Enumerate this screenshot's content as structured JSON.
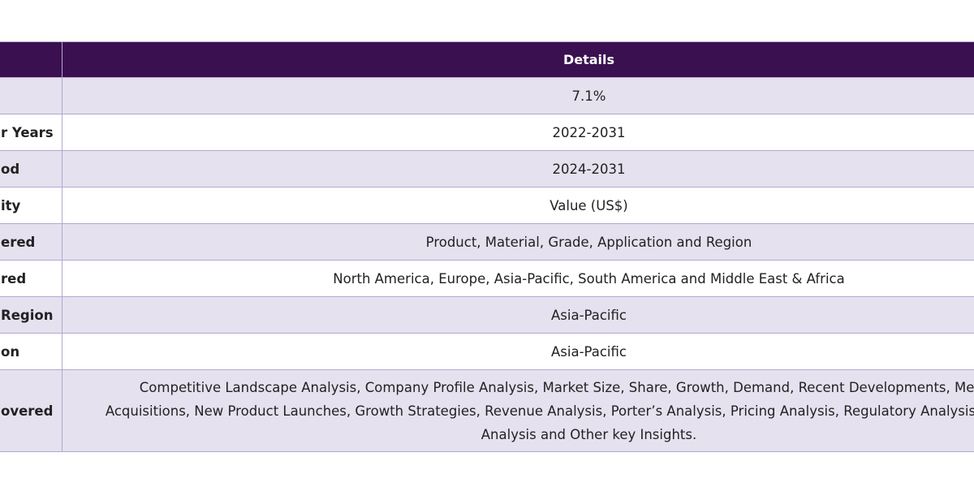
{
  "table": {
    "header": {
      "details": "Details"
    },
    "rows": [
      {
        "value": "7.1%"
      },
      {
        "label": "r Years",
        "value": "2022-2031"
      },
      {
        "label": "od",
        "value": "2024-2031"
      },
      {
        "label": "ity",
        "value": "Value (US$)"
      },
      {
        "label": "ered",
        "value": "Product, Material, Grade, Application and Region"
      },
      {
        "label": "red",
        "value": "North America, Europe, Asia-Pacific, South America and Middle East & Africa"
      },
      {
        "label": "Region",
        "value": "Asia-Pacific"
      },
      {
        "label": "on",
        "value": "Asia-Pacific"
      },
      {
        "label": "overed",
        "lines": [
          "Competitive Landscape Analysis, Company Profile Analysis, Market Size, Share, Growth, Demand, Recent Developments, Mergers and",
          "Acquisitions, New Product Launches, Growth Strategies, Revenue Analysis, Porter’s Analysis, Pricing Analysis, Regulatory Analysis, Supply Chain",
          "Analysis and Other key Insights."
        ]
      }
    ]
  }
}
